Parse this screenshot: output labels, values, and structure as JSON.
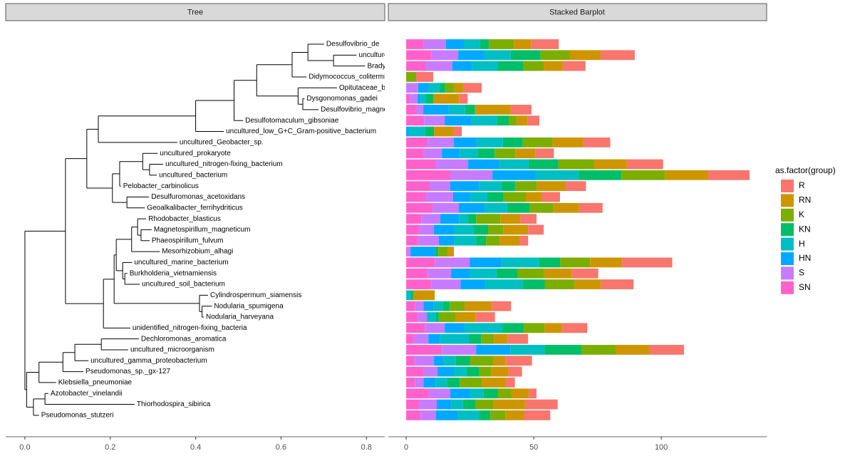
{
  "chart_data": [
    {
      "type": "tree",
      "title": "Tree",
      "xlim": [
        -0.045,
        0.843
      ],
      "xticks": [
        {
          "value": 0,
          "label": "0.0"
        },
        {
          "value": 0.2,
          "label": "0.2"
        },
        {
          "value": 0.4,
          "label": "0.4"
        },
        {
          "value": 0.6,
          "label": "0.6"
        },
        {
          "value": 0.8,
          "label": "0.8"
        }
      ],
      "tree": {
        "x": 0,
        "children": [
          {
            "x": 0.095,
            "children": [
              {
                "x": 0.145,
                "children": [
                  {
                    "x": 0.172,
                    "children": [
                      {
                        "x": 0.4,
                        "children": [
                          {
                            "x": 0.49,
                            "children": [
                              {
                                "x": 0.543,
                                "children": [
                                  {
                                    "x": 0.626,
                                    "children": [
                                      {
                                        "x": 0.663,
                                        "children": [
                                          {
                                            "label": "Desulfovibrio_de",
                                            "x": 0.701
                                          },
                                          {
                                            "x": 0.723,
                                            "children": [
                                              {
                                                "label": "unculture",
                                                "x": 0.777
                                              },
                                              {
                                                "label": "Brady",
                                                "x": 0.797
                                              }
                                            ]
                                          }
                                        ]
                                      },
                                      {
                                        "label": "Didymococcus_colitermit",
                                        "x": 0.66
                                      }
                                    ]
                                  },
                                  {
                                    "x": 0.64,
                                    "children": [
                                      {
                                        "label": "Opitutaceae_ba",
                                        "x": 0.731
                                      },
                                      {
                                        "x": 0.651,
                                        "children": [
                                          {
                                            "label": "Dysgonomonas_gadei",
                                            "x": 0.655
                                          },
                                          {
                                            "label": "Desulfovibrio_magnet",
                                            "x": 0.688
                                          }
                                        ]
                                      }
                                    ]
                                  }
                                ]
                              },
                              {
                                "label": "Desulfotomaculum_gibsoniae",
                                "x": 0.511
                              }
                            ]
                          },
                          {
                            "label": "uncultured_low_G+C_Gram-positive_bacterium",
                            "x": 0.466
                          }
                        ]
                      },
                      {
                        "label": "uncultured_Geobacter_sp.",
                        "x": 0.357
                      }
                    ]
                  },
                  {
                    "x": 0.205,
                    "children": [
                      {
                        "x": 0.222,
                        "children": [
                          {
                            "x": 0.276,
                            "children": [
                              {
                                "label": "uncultured_prokaryote",
                                "x": 0.311
                              },
                              {
                                "x": 0.292,
                                "children": [
                                  {
                                    "label": "uncultured_nitrogen-fixing_bacterium",
                                    "x": 0.324
                                  },
                                  {
                                    "label": "uncultured_bacterium",
                                    "x": 0.309
                                  }
                                ]
                              }
                            ]
                          },
                          {
                            "label": "Pelobacter_carbinolicus",
                            "x": 0.225
                          }
                        ]
                      },
                      {
                        "x": 0.239,
                        "children": [
                          {
                            "label": "Desulfuromonas_acetoxidans",
                            "x": 0.291
                          },
                          {
                            "label": "Geoalkalibacter_ferrihydriticus",
                            "x": 0.281
                          }
                        ]
                      }
                    ]
                  }
                ]
              },
              {
                "x": 0.184,
                "children": [
                  {
                    "x": 0.209,
                    "children": [
                      {
                        "x": 0.214,
                        "children": [
                          {
                            "x": 0.25,
                            "children": [
                              {
                                "x": 0.264,
                                "children": [
                                  {
                                    "label": "Rhodobacter_blasticus",
                                    "x": 0.284
                                  },
                                  {
                                    "x": 0.272,
                                    "children": [
                                      {
                                        "label": "Magnetospirillum_magneticum",
                                        "x": 0.297
                                      },
                                      {
                                        "label": "Phaeospirillum_fulvum",
                                        "x": 0.292
                                      }
                                    ]
                                  }
                                ]
                              },
                              {
                                "label": "Mesorhizobium_alhagi",
                                "x": 0.316
                              }
                            ]
                          },
                          {
                            "x": 0.229,
                            "children": [
                              {
                                "label": "uncultured_marine_bacterium",
                                "x": 0.251
                              },
                              {
                                "x": 0.234,
                                "children": [
                                  {
                                    "label": "Burkholderia_vietnamiensis",
                                    "x": 0.24
                                  },
                                  {
                                    "label": "uncultured_soil_bacterium",
                                    "x": 0.269
                                  }
                                ]
                              }
                            ]
                          }
                        ]
                      },
                      {
                        "x": 0.409,
                        "children": [
                          {
                            "label": "Cylindrospermum_siamensis",
                            "x": 0.429
                          },
                          {
                            "x": 0.415,
                            "children": [
                              {
                                "label": "Nodularia_spumigena",
                                "x": 0.438
                              },
                              {
                                "label": "Nodularia_harveyana",
                                "x": 0.419
                              }
                            ]
                          }
                        ]
                      }
                    ]
                  },
                  {
                    "label": "unidentified_nitrogen-fixing_bacteria",
                    "x": 0.247
                  }
                ]
              }
            ]
          },
          {
            "x": 0.004,
            "children": [
              {
                "x": 0.033,
                "children": [
                  {
                    "x": 0.089,
                    "children": [
                      {
                        "x": 0.117,
                        "children": [
                          {
                            "x": 0.179,
                            "children": [
                              {
                                "label": "Dechloromonas_aromatica",
                                "x": 0.267
                              },
                              {
                                "label": "uncultured_microorganism",
                                "x": 0.242
                              }
                            ]
                          },
                          {
                            "label": "uncultured_gamma_proteobacterium",
                            "x": 0.149
                          }
                        ]
                      },
                      {
                        "label": "Pseudomonas_sp._gx-127",
                        "x": 0.137
                      }
                    ]
                  },
                  {
                    "label": "Klebsiella_pneumoniae",
                    "x": 0.073
                  }
                ]
              },
              {
                "x": 0.02,
                "children": [
                  {
                    "x": 0.047,
                    "children": [
                      {
                        "label": "Azotobacter_vinelandii",
                        "x": 0.055
                      },
                      {
                        "label": "Thiorhodospira_sibirica",
                        "x": 0.257
                      }
                    ]
                  },
                  {
                    "label": "Pseudomonas_stutzeri",
                    "x": 0.033
                  }
                ]
              }
            ]
          }
        ]
      }
    },
    {
      "type": "bar",
      "orientation": "horizontal",
      "stacked": true,
      "title": "Stacked Barplot",
      "xlim": [
        -7,
        141.3
      ],
      "xticks": [
        0,
        50,
        100
      ],
      "legend_title": "as.factor(group)",
      "legend": "right",
      "series": [
        {
          "name": "R",
          "color": "#F8766D",
          "values": [
            10.9,
            13.4,
            8.9,
            6.7,
            7.3,
            3.4,
            8.1,
            4.7,
            3.1,
            10.6,
            7.3,
            14.2,
            16.2,
            8.1,
            7.0,
            9.2,
            6.4,
            6.1,
            3.4,
            0,
            19.6,
            10.3,
            12.8,
            0,
            7.5,
            7.5,
            9.8,
            8.1,
            13.4,
            10.3,
            5.3,
            3.4,
            3.1,
            12.8,
            10.3
          ]
        },
        {
          "name": "RN",
          "color": "#CD9600",
          "values": [
            6.7,
            12.0,
            7.5,
            0,
            3.4,
            10.1,
            14.0,
            4.2,
            7.8,
            12.0,
            7.8,
            12.8,
            17.0,
            11.2,
            6.4,
            10.1,
            7.8,
            9.8,
            7.8,
            2.5,
            12.6,
            10.9,
            10.3,
            8.4,
            10.6,
            7.8,
            7.0,
            5.3,
            13.4,
            4.7,
            6.7,
            9.5,
            6.7,
            12.3,
            7.3
          ]
        },
        {
          "name": "K",
          "color": "#7CAE00",
          "values": [
            9.8,
            11.5,
            8.1,
            3.9,
            3.6,
            0,
            0,
            3.1,
            0,
            11.7,
            8.1,
            14.0,
            17.0,
            8.4,
            8.7,
            9.2,
            9.5,
            5.9,
            5.3,
            3.6,
            11.7,
            10.3,
            11.7,
            0,
            5.9,
            6.7,
            8.1,
            5.0,
            13.4,
            9.2,
            4.7,
            8.7,
            5.3,
            7.0,
            5.9
          ]
        },
        {
          "name": "KN",
          "color": "#00BE67",
          "values": [
            3.4,
            11.7,
            9.8,
            0,
            2.2,
            2.8,
            3.9,
            4.7,
            3.4,
            7.8,
            6.7,
            11.7,
            16.8,
            5.6,
            6.4,
            8.9,
            3.1,
            5.6,
            3.9,
            1.4,
            8.4,
            8.4,
            8.7,
            1.1,
            2.8,
            1.1,
            8.4,
            4.7,
            14.5,
            5.6,
            5.0,
            5.0,
            5.6,
            5.0,
            4.5
          ]
        },
        {
          "name": "H",
          "color": "#00BFC4",
          "values": [
            6.4,
            10.3,
            10.1,
            0,
            4.2,
            2.2,
            6.4,
            10.1,
            6.4,
            10.3,
            7.0,
            11.7,
            16.8,
            8.7,
            6.7,
            8.9,
            3.6,
            7.8,
            8.7,
            0,
            14.5,
            10.3,
            14.5,
            1.7,
            3.6,
            3.6,
            14.8,
            11.5,
            13.4,
            4.7,
            5.0,
            4.5,
            5.3,
            4.7,
            8.1
          ]
        },
        {
          "name": "HN",
          "color": "#00A9FF",
          "values": [
            7.0,
            10.3,
            7.8,
            0,
            4.2,
            1.1,
            10.0,
            10.3,
            1.1,
            8.9,
            7.0,
            12.0,
            17.0,
            11.2,
            6.7,
            10.1,
            7.3,
            7.8,
            5.9,
            9.5,
            12.6,
            7.5,
            9.8,
            0,
            3.9,
            0,
            7.8,
            4.5,
            13.4,
            3.9,
            6.4,
            4.7,
            7.8,
            5.6,
            8.7
          ]
        },
        {
          "name": "S",
          "color": "#C77CFF",
          "values": [
            8.9,
            10.6,
            10.3,
            0,
            4.7,
            3.1,
            3.1,
            8.1,
            0,
            10.3,
            7.3,
            12.6,
            16.5,
            8.1,
            10.6,
            10.3,
            7.5,
            5.9,
            8.1,
            1.1,
            13.7,
            9.2,
            11.5,
            0,
            3.4,
            3.6,
            7.8,
            5.9,
            13.4,
            7.8,
            5.6,
            3.4,
            8.4,
            7.0,
            6.1
          ]
        },
        {
          "name": "SN",
          "color": "#FF61CC",
          "values": [
            6.7,
            9.8,
            7.8,
            0,
            0,
            1.4,
            3.6,
            7.0,
            0,
            8.4,
            6.7,
            11.7,
            17.3,
            9.2,
            7.8,
            10.3,
            5.9,
            5.0,
            4.7,
            0.6,
            11.2,
            8.4,
            9.8,
            0,
            3.4,
            4.5,
            7.3,
            2.8,
            14.0,
            3.1,
            6.7,
            3.4,
            8.9,
            5.0,
            5.6
          ]
        }
      ]
    }
  ]
}
